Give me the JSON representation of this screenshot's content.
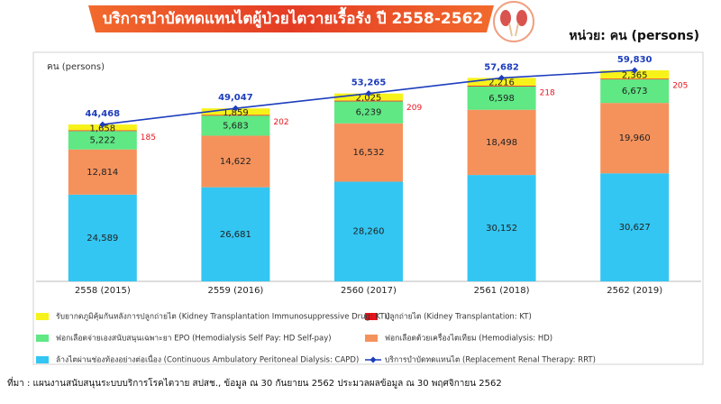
{
  "chart_data": {
    "type": "bar",
    "stacked": true,
    "title": "บริการบำบัดทดแทนไตผู้ป่วยไตวายเรื้อรัง ปี 2558-2562",
    "unit_label": "หน่วย: คน (persons)",
    "y_label": "คน (persons)",
    "source": "ที่มา : แผนงานสนับสนุนระบบบริการโรคไตวาย สปสช., ข้อมูล ณ 30 กันยายน 2562 ประมวลผลข้อมูล ณ 30 พฤศจิกายน 2562",
    "categories": [
      "2558 (2015)",
      "2559 (2016)",
      "2560 (2017)",
      "2561 (2018)",
      "2562 (2019)"
    ],
    "series": [
      {
        "name": "ล้างไตผ่านช่องท้องอย่างต่อเนื่อง (Continuous Ambulatory Peritoneal Dialysis: CAPD)",
        "color": "#33c6f2",
        "values": [
          24589,
          26681,
          28260,
          30152,
          30627
        ],
        "value_labels": [
          "24,589",
          "26,681",
          "28,260",
          "30,152",
          "30,627"
        ]
      },
      {
        "name": "ฟอกเลือดด้วยเครื่องไตเทียม (Hemodialysis: HD)",
        "color": "#f5925c",
        "values": [
          12814,
          14622,
          16532,
          18498,
          19960
        ],
        "value_labels": [
          "12,814",
          "14,622",
          "16,532",
          "18,498",
          "19,960"
        ]
      },
      {
        "name": "ฟอกเลือดจ่ายเองสนับสนุนเฉพาะยา EPO (Hemodialysis Self Pay: HD Self-pay)",
        "color": "#5fe884",
        "values": [
          5222,
          5683,
          6239,
          6598,
          6673
        ],
        "value_labels": [
          "5,222",
          "5,683",
          "6,239",
          "6,598",
          "6,673"
        ]
      },
      {
        "name": "ปลูกถ่ายไต (Kidney Transplantation: KT)",
        "color": "#e8141c",
        "values": [
          185,
          202,
          209,
          218,
          205
        ]
      },
      {
        "name": "รับยากดภูมิคุ้มกันหลังการปลูกถ่ายไต (Kidney Transplantation Immunosuppressive Drug: KTI)",
        "color": "#f7f21a",
        "values": [
          1658,
          1859,
          2025,
          2216,
          2365
        ],
        "value_labels": [
          "1,658",
          "1,859",
          "2,025",
          "2,216",
          "2,365"
        ]
      },
      {
        "name": "บริการบำบัดทดแทนไต (Replacement Renal Therapy: RRT)",
        "type": "line",
        "color": "#1d3dbd",
        "values": [
          44468,
          49047,
          53265,
          57682,
          59830
        ],
        "value_labels": [
          "44,468",
          "49,047",
          "53,265",
          "57,682",
          "59,830"
        ]
      }
    ]
  }
}
